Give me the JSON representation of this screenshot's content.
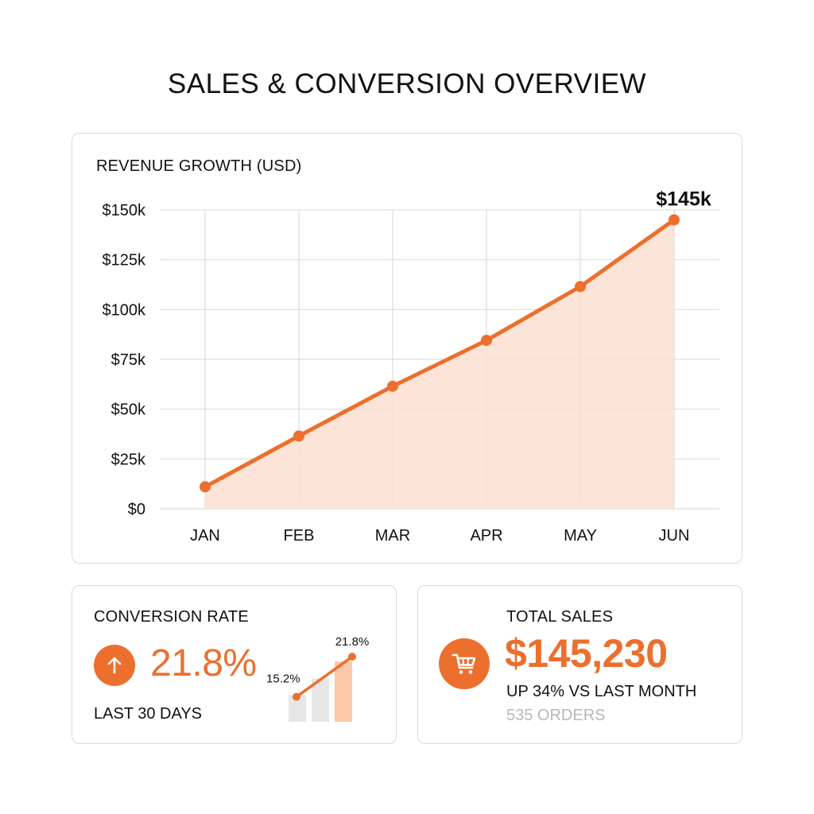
{
  "page": {
    "title": "SALES & CONVERSION OVERVIEW"
  },
  "colors": {
    "accent": "#ec6f2d",
    "fill": "#fbe1d1",
    "grid": "#dddddd",
    "muted": "#b8b8b8",
    "bar_gray": "#e6e6e6",
    "bar_accent": "#fbc8a8"
  },
  "chart_data": {
    "type": "line",
    "title": "REVENUE GROWTH (USD)",
    "categories": [
      "JAN",
      "FEB",
      "MAR",
      "APR",
      "MAY",
      "JUN"
    ],
    "series": [
      {
        "values": [
          11000,
          36500,
          61500,
          84500,
          111500,
          145000
        ]
      }
    ],
    "ylim": [
      0,
      150000
    ],
    "yticks": [
      0,
      25000,
      50000,
      75000,
      100000,
      125000,
      150000
    ],
    "ytick_labels": [
      "$0",
      "$25k",
      "$50k",
      "$75k",
      "$100k",
      "$125k",
      "$150k"
    ],
    "end_label": "$145k",
    "area_fill": true,
    "grid": true
  },
  "conversion": {
    "title": "CONVERSION RATE",
    "icon": "arrow-up-icon",
    "value": "21.8%",
    "period": "LAST 30 DAYS",
    "mini_chart": {
      "type": "bar",
      "values": [
        15.2,
        18.5,
        21.8
      ],
      "start_label": "15.2%",
      "end_label": "21.8%"
    }
  },
  "sales": {
    "title": "TOTAL SALES",
    "icon": "shopping-cart-icon",
    "value": "$145,230",
    "change": "UP 34% VS LAST MONTH",
    "orders": "535 ORDERS"
  }
}
